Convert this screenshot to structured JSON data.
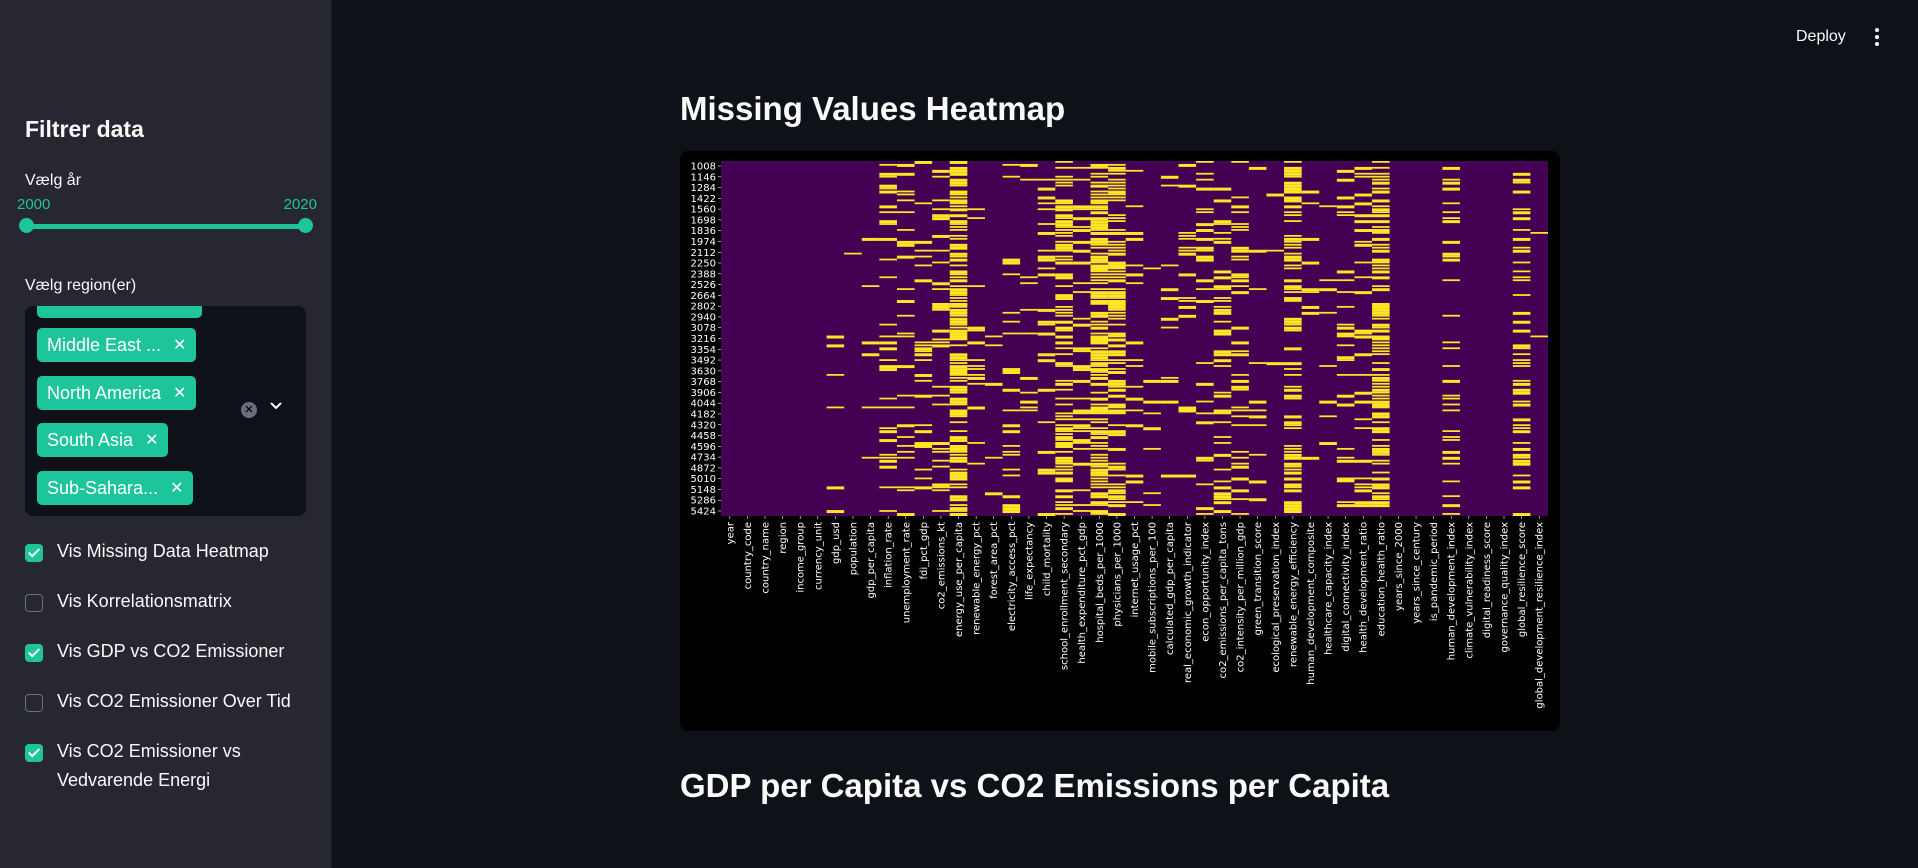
{
  "header": {
    "deploy_label": "Deploy",
    "menu_icon": "kebab-menu-icon"
  },
  "sidebar": {
    "title": "Filtrer data",
    "year_slider": {
      "label": "Vælg år",
      "min_value": "2000",
      "max_value": "2020"
    },
    "region_select": {
      "label": "Vælg region(er)",
      "selected": [
        "Middle East ...",
        "North America",
        "South Asia",
        "Sub-Sahara..."
      ]
    },
    "checkboxes": [
      {
        "label": "Vis Missing Data Heatmap",
        "checked": true
      },
      {
        "label": "Vis Korrelationsmatrix",
        "checked": false
      },
      {
        "label": "Vis GDP vs CO2 Emissioner",
        "checked": true
      },
      {
        "label": "Vis CO2 Emissioner Over Tid",
        "checked": false
      },
      {
        "label": "Vis CO2 Emissioner vs Vedvarende Energi",
        "checked": true
      }
    ]
  },
  "main": {
    "heatmap_title": "Missing Values Heatmap",
    "next_title": "GDP per Capita vs CO2 Emissions per Capita"
  },
  "colors": {
    "accent": "#1fc59a",
    "missing": "#fde725",
    "present": "#440154"
  },
  "chart_data": {
    "type": "heatmap",
    "title": "",
    "y_ticks": [
      "1008",
      "1146",
      "1284",
      "1422",
      "1560",
      "1698",
      "1836",
      "1974",
      "2112",
      "2250",
      "2388",
      "2526",
      "2664",
      "2802",
      "2940",
      "3078",
      "3216",
      "3354",
      "3492",
      "3630",
      "3768",
      "3906",
      "4044",
      "4182",
      "4320",
      "4458",
      "4596",
      "4734",
      "4872",
      "5010",
      "5148",
      "5286",
      "5424"
    ],
    "columns": [
      "year",
      "country_code",
      "country_name",
      "region",
      "income_group",
      "currency_unit",
      "gdp_usd",
      "population",
      "gdp_per_capita",
      "inflation_rate",
      "unemployment_rate",
      "fdi_pct_gdp",
      "co2_emissions_kt",
      "energy_use_per_capita",
      "renewable_energy_pct",
      "forest_area_pct",
      "electricity_access_pct",
      "life_expectancy",
      "child_mortality",
      "school_enrollment_secondary",
      "health_expenditure_pct_gdp",
      "hospital_beds_per_1000",
      "physicians_per_1000",
      "internet_usage_pct",
      "mobile_subscriptions_per_100",
      "calculated_gdp_per_capita",
      "real_economic_growth_indicator",
      "econ_opportunity_index",
      "co2_emissions_per_capita_tons",
      "co2_intensity_per_million_gdp",
      "green_transition_score",
      "ecological_preservation_index",
      "renewable_energy_efficiency",
      "human_development_composite",
      "healthcare_capacity_index",
      "digital_connectivity_index",
      "health_development_ratio",
      "education_health_ratio",
      "years_since_2000",
      "years_since_century",
      "is_pandemic_period",
      "human_development_index",
      "climate_vulnerability_index",
      "digital_readiness_score",
      "governance_quality_index",
      "global_resilience_score",
      "global_development_resilience_index"
    ],
    "missing_fraction": [
      0,
      0,
      0,
      0,
      0,
      0,
      0.03,
      0.01,
      0.05,
      0.25,
      0.25,
      0.12,
      0.25,
      0.75,
      0.06,
      0.05,
      0.18,
      0.1,
      0.22,
      0.55,
      0.3,
      0.8,
      0.7,
      0.12,
      0.05,
      0.1,
      0.12,
      0.18,
      0.3,
      0.3,
      0.1,
      0.05,
      0.6,
      0.05,
      0.05,
      0.2,
      0.3,
      0.7,
      0,
      0,
      0,
      0.3,
      0,
      0,
      0,
      0.35,
      0.02
    ],
    "colorscale": [
      "#440154",
      "#fde725"
    ]
  }
}
